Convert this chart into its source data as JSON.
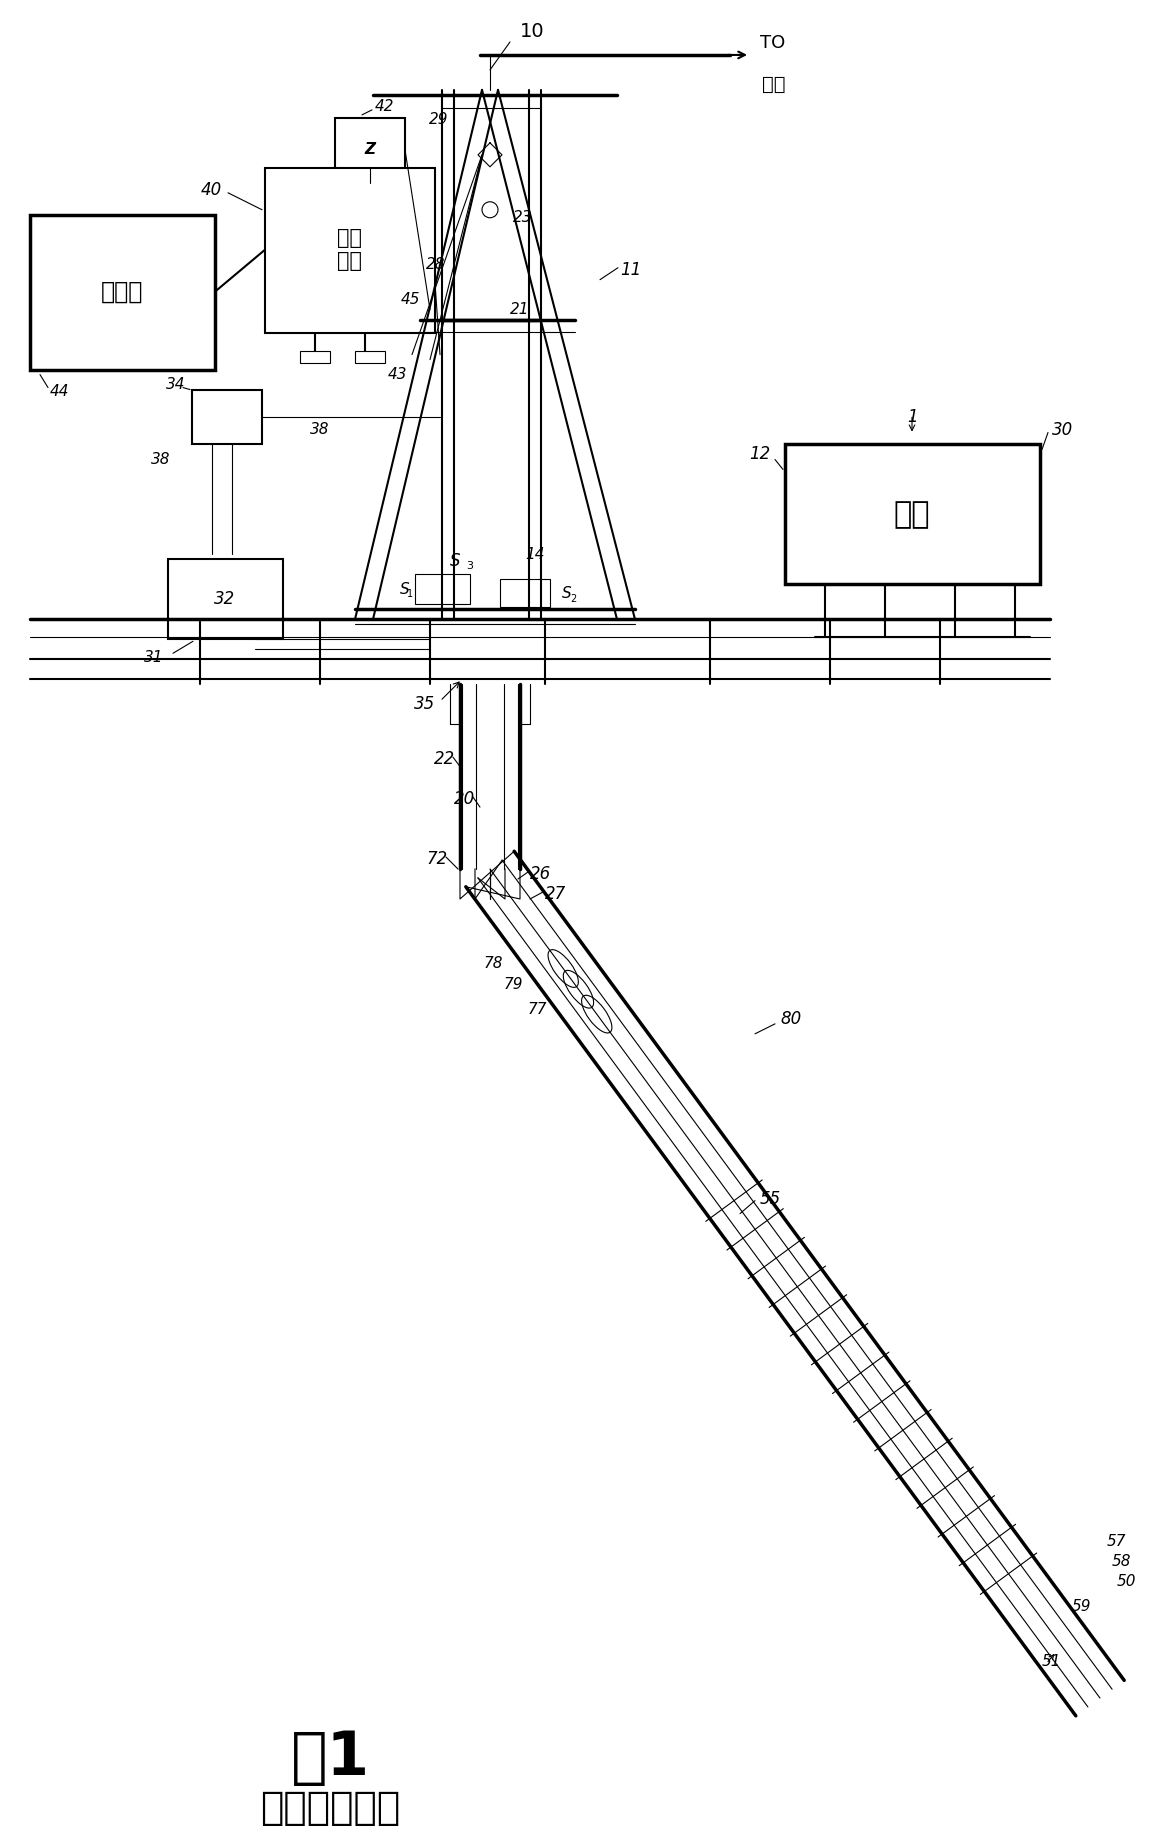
{
  "title": "图1",
  "subtitle": "（现有技术）",
  "background_color": "#ffffff",
  "fig_width": 11.66,
  "fig_height": 18.32,
  "labels": {
    "10_top": "10",
    "TO": "TO",
    "winch_top": "绞车",
    "42": "42",
    "45": "45",
    "40": "40",
    "alarm": "报警器",
    "44": "44",
    "control": "控制\n单元",
    "43": "43",
    "34": "34",
    "38a": "38",
    "38b": "38",
    "32": "32",
    "31": "31",
    "35": "35",
    "11": "11",
    "29": "29",
    "23": "23",
    "28": "28",
    "21": "21",
    "14": "14",
    "S1": "S",
    "S1_sub": "1",
    "S2": "S",
    "S2_sub": "2",
    "S3": "S",
    "S3_sub": "3",
    "12": "12",
    "30": "30",
    "winch_right": "绞车",
    "22": "22",
    "20": "20",
    "72": "72",
    "26": "26",
    "27": "27",
    "78": "78",
    "79": "79",
    "77": "77",
    "80": "80",
    "55": "55",
    "57": "57",
    "58": "58",
    "50": "50",
    "59": "59",
    "51": "51",
    "1": "1"
  }
}
